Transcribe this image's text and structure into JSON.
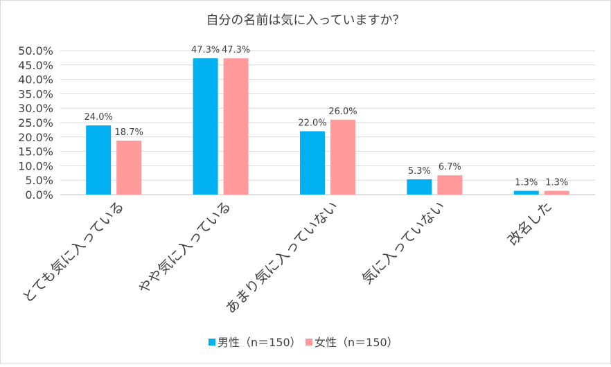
{
  "chart_data": {
    "type": "bar",
    "title": "自分の名前は気に入っていますか？",
    "categories": [
      "とても気に入っている",
      "やや気に入っている",
      "あまり気に入っていない",
      "気に入っていない",
      "改名した"
    ],
    "series": [
      {
        "name": "男性（n＝150）",
        "values": [
          24.0,
          47.3,
          22.0,
          5.3,
          1.3
        ],
        "labels": [
          "24.0%",
          "47.3%",
          "22.0%",
          "5.3%",
          "1.3%"
        ],
        "color": "#00b0f0"
      },
      {
        "name": "女性（n＝150）",
        "values": [
          18.7,
          47.3,
          26.0,
          6.7,
          1.3
        ],
        "labels": [
          "18.7%",
          "47.3%",
          "26.0%",
          "6.7%",
          "1.3%"
        ],
        "color": "#ff999a"
      }
    ],
    "yticks": [
      "0.0%",
      "5.0%",
      "10.0%",
      "15.0%",
      "20.0%",
      "25.0%",
      "30.0%",
      "35.0%",
      "40.0%",
      "45.0%",
      "50.0%"
    ],
    "ylim": [
      0,
      50
    ],
    "xlabel": "",
    "ylabel": "",
    "legend_position": "bottom",
    "grid": true,
    "colors": {
      "grid": "#d9d9d9",
      "text": "#404040",
      "axis": "#bfbfbf"
    }
  }
}
